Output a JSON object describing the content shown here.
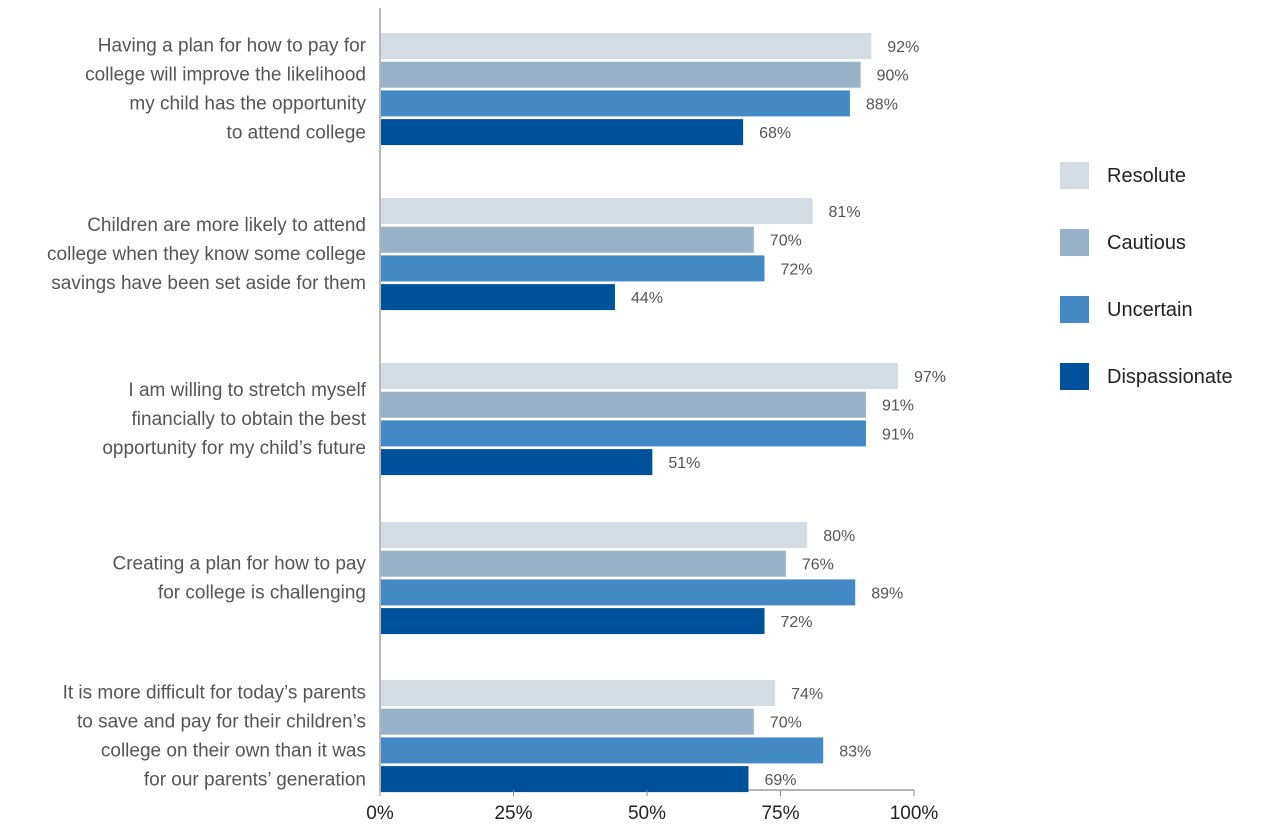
{
  "chart_data": {
    "type": "bar",
    "orientation": "horizontal",
    "categories": [
      [
        "Having a plan for how to pay for",
        "college will improve the likelihood",
        "my child has the opportunity",
        "to attend college"
      ],
      [
        "Children are more likely to attend",
        "college when they know some college",
        "savings have been set aside for them"
      ],
      [
        "I am willing to stretch myself",
        "financially to obtain the best",
        "opportunity for my child’s future"
      ],
      [
        "Creating a plan for how to pay",
        "for college is challenging"
      ],
      [
        "It is more difficult for today’s parents",
        "to save and pay for their children’s",
        "college on their own than it was",
        "for our parents’ generation"
      ]
    ],
    "series": [
      {
        "name": "Resolute",
        "color": "#d3dce3",
        "values": [
          92,
          81,
          97,
          80,
          74
        ],
        "labels": [
          "92%",
          "81%",
          "97%",
          "80%",
          "74%"
        ]
      },
      {
        "name": "Cautious",
        "color": "#96b1c8",
        "values": [
          90,
          70,
          91,
          76,
          70
        ],
        "labels": [
          "90%",
          "70%",
          "91%",
          "76%",
          "70%"
        ]
      },
      {
        "name": "Uncertain",
        "color": "#4289c5",
        "values": [
          88,
          72,
          91,
          89,
          83
        ],
        "labels": [
          "88%",
          "72%",
          "91%",
          "89%",
          "83%"
        ]
      },
      {
        "name": "Dispassionate",
        "color": "#00519b",
        "values": [
          68,
          44,
          51,
          72,
          69
        ],
        "labels": [
          "68%",
          "44%",
          "51%",
          "72%",
          "69%"
        ]
      }
    ],
    "xlim": [
      0,
      100
    ],
    "xticks": [
      0,
      25,
      50,
      75,
      100
    ],
    "xtick_labels": [
      "0%",
      "25%",
      "50%",
      "75%",
      "100%"
    ],
    "legend": [
      "Resolute",
      "Cautious",
      "Uncertain",
      "Dispassionate"
    ],
    "legend_position": "right",
    "grid": false
  }
}
